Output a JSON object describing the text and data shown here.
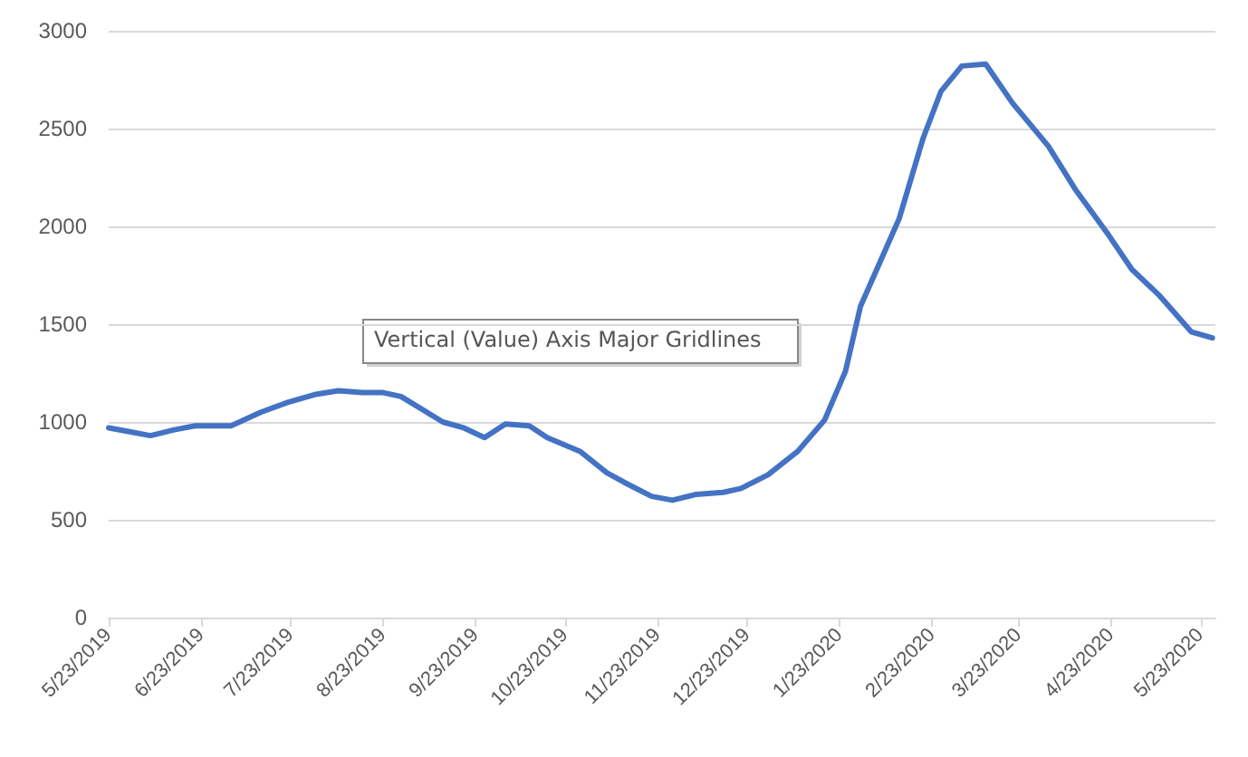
{
  "chart_data": {
    "type": "line",
    "x": [
      "2019-05-23",
      "2019-05-30",
      "2019-06-06",
      "2019-06-14",
      "2019-06-21",
      "2019-07-03",
      "2019-07-13",
      "2019-07-22",
      "2019-07-31",
      "2019-08-08",
      "2019-08-16",
      "2019-08-23",
      "2019-08-29",
      "2019-09-12",
      "2019-09-19",
      "2019-09-26",
      "2019-10-03",
      "2019-10-11",
      "2019-10-17",
      "2019-10-28",
      "2019-11-06",
      "2019-11-12",
      "2019-11-21",
      "2019-11-28",
      "2019-12-06",
      "2019-12-15",
      "2019-12-21",
      "2019-12-30",
      "2020-01-09",
      "2020-01-18",
      "2020-01-25",
      "2020-01-30",
      "2020-02-12",
      "2020-02-20",
      "2020-02-26",
      "2020-03-04",
      "2020-03-12",
      "2020-03-21",
      "2020-04-02",
      "2020-04-11",
      "2020-04-22",
      "2020-04-30",
      "2020-05-09",
      "2020-05-20",
      "2020-05-27"
    ],
    "series": [
      {
        "color": "#4472c4",
        "values": [
          970,
          950,
          930,
          960,
          980,
          980,
          1050,
          1100,
          1140,
          1160,
          1150,
          1150,
          1130,
          1000,
          970,
          920,
          990,
          980,
          920,
          850,
          740,
          690,
          620,
          600,
          630,
          640,
          660,
          730,
          850,
          1010,
          1260,
          1590,
          2040,
          2450,
          2690,
          2820,
          2830,
          2630,
          2410,
          2190,
          1960,
          1780,
          1650,
          1460,
          1430
        ]
      }
    ],
    "xlim": [
      "2019-05-23",
      "2020-05-28"
    ],
    "xticks": [
      {
        "value": "2019-05-23",
        "label": "5/23/2019"
      },
      {
        "value": "2019-06-23",
        "label": "6/23/2019"
      },
      {
        "value": "2019-07-23",
        "label": "7/23/2019"
      },
      {
        "value": "2019-08-23",
        "label": "8/23/2019"
      },
      {
        "value": "2019-09-23",
        "label": "9/23/2019"
      },
      {
        "value": "2019-10-23",
        "label": "10/23/2019"
      },
      {
        "value": "2019-11-23",
        "label": "11/23/2019"
      },
      {
        "value": "2019-12-23",
        "label": "12/23/2019"
      },
      {
        "value": "2020-01-23",
        "label": "1/23/2020"
      },
      {
        "value": "2020-02-23",
        "label": "2/23/2020"
      },
      {
        "value": "2020-03-23",
        "label": "3/23/2020"
      },
      {
        "value": "2020-04-23",
        "label": "4/23/2020"
      },
      {
        "value": "2020-05-23",
        "label": "5/23/2020"
      }
    ],
    "ylim": [
      0,
      3000
    ],
    "yticks": [
      0,
      500,
      1000,
      1500,
      2000,
      2500,
      3000
    ],
    "grid": "y",
    "marker": "none",
    "line_style": "solid",
    "annotations": [
      "Vertical (Value) Axis Major Gridlines"
    ]
  }
}
